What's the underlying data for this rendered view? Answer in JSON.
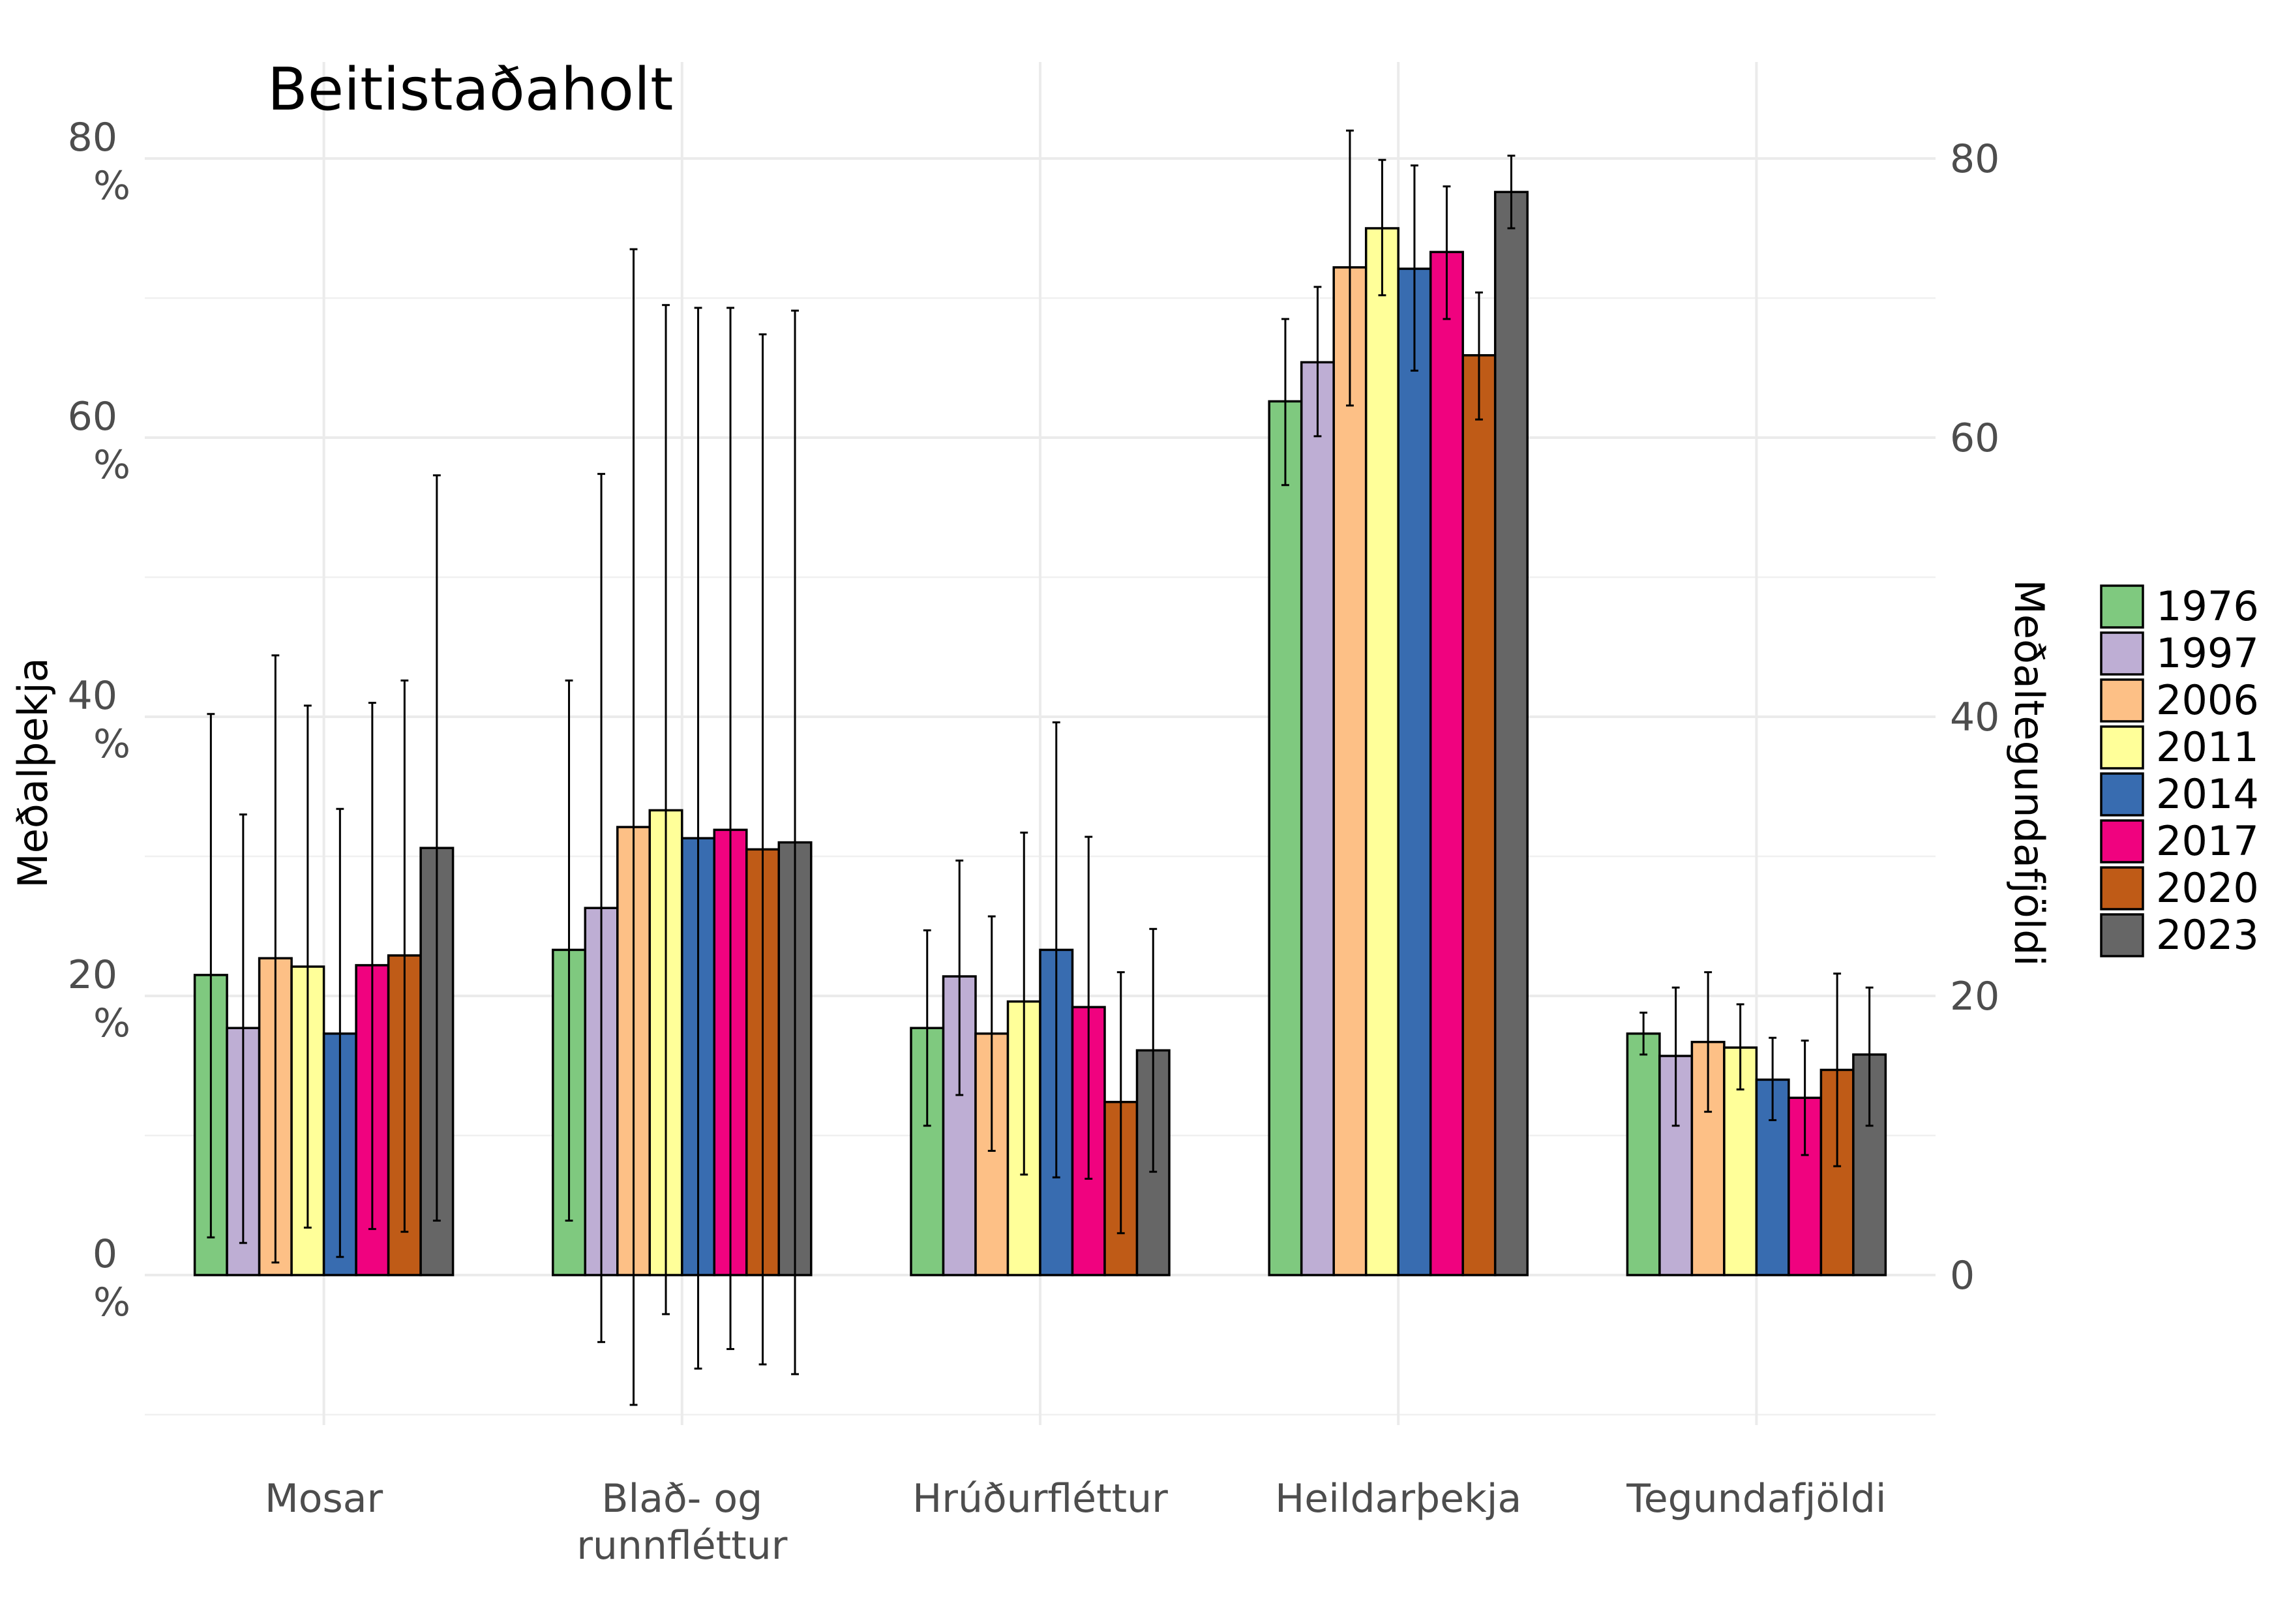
{
  "chart_data": {
    "type": "bar",
    "title": "Beitistaðaholt",
    "ylabel": "Meðalþekja",
    "ylabel_right": "Meðaltegundafjöldi",
    "xlabel": "",
    "ylim": [
      -10,
      85
    ],
    "y_ticks": [
      {
        "value": 0,
        "line1": "0",
        "line2": "%"
      },
      {
        "value": 20,
        "line1": "20",
        "line2": "%"
      },
      {
        "value": 40,
        "line1": "40",
        "line2": "%"
      },
      {
        "value": 60,
        "line1": "60",
        "line2": "%"
      },
      {
        "value": 80,
        "line1": "80",
        "line2": "%"
      }
    ],
    "y_ticks_right": [
      "0",
      "20",
      "40",
      "60",
      "80"
    ],
    "categories": [
      [
        "Mosar"
      ],
      [
        "Blað- og",
        "runnfléttur"
      ],
      [
        "Hrúðurfléttur"
      ],
      [
        "Heildarþekja"
      ],
      [
        "Tegundafjöldi"
      ]
    ],
    "grid": true,
    "legend_position": "right",
    "series": [
      {
        "name": "1976",
        "color": "#7FC97F",
        "values": [
          21.5,
          23.3,
          17.7,
          62.6,
          17.3
        ],
        "err_low": [
          2.7,
          3.9,
          10.7,
          56.6,
          15.8
        ],
        "err_high": [
          40.2,
          42.6,
          24.7,
          68.5,
          18.8
        ]
      },
      {
        "name": "1997",
        "color": "#BEAED4",
        "values": [
          17.7,
          26.3,
          21.4,
          65.4,
          15.7
        ],
        "err_low": [
          2.3,
          -4.8,
          12.9,
          60.1,
          10.7
        ],
        "err_high": [
          33.0,
          57.4,
          29.7,
          70.8,
          20.6
        ]
      },
      {
        "name": "2006",
        "color": "#FDC086",
        "values": [
          22.7,
          32.1,
          17.3,
          72.2,
          16.7
        ],
        "err_low": [
          0.9,
          -9.3,
          8.9,
          62.3,
          11.7
        ],
        "err_high": [
          44.4,
          73.5,
          25.7,
          82.0,
          21.7
        ]
      },
      {
        "name": "2011",
        "color": "#FFFF99",
        "values": [
          22.1,
          33.3,
          19.6,
          75.0,
          16.3
        ],
        "err_low": [
          3.4,
          -2.8,
          7.2,
          70.2,
          13.3
        ],
        "err_high": [
          40.8,
          69.5,
          31.7,
          79.9,
          19.4
        ]
      },
      {
        "name": "2014",
        "color": "#386CB0",
        "values": [
          17.3,
          31.3,
          23.3,
          72.1,
          14.0
        ],
        "err_low": [
          1.3,
          -6.7,
          7.0,
          64.8,
          11.1
        ],
        "err_high": [
          33.4,
          69.3,
          39.6,
          79.5,
          17.0
        ]
      },
      {
        "name": "2017",
        "color": "#F0027F",
        "values": [
          22.2,
          31.9,
          19.2,
          73.3,
          12.7
        ],
        "err_low": [
          3.3,
          -5.3,
          6.9,
          68.5,
          8.6
        ],
        "err_high": [
          41.0,
          69.3,
          31.4,
          78.0,
          16.8
        ]
      },
      {
        "name": "2020",
        "color": "#BF5B17",
        "values": [
          22.9,
          30.5,
          12.4,
          65.9,
          14.7
        ],
        "err_low": [
          3.1,
          -6.4,
          3.0,
          61.3,
          7.8
        ],
        "err_high": [
          42.6,
          67.4,
          21.7,
          70.4,
          21.6
        ]
      },
      {
        "name": "2023",
        "color": "#666666",
        "values": [
          30.6,
          31.0,
          16.1,
          77.6,
          15.8
        ],
        "err_low": [
          3.9,
          -7.1,
          7.4,
          75.0,
          10.7
        ],
        "err_high": [
          57.3,
          69.1,
          24.8,
          80.2,
          20.6
        ]
      }
    ]
  }
}
